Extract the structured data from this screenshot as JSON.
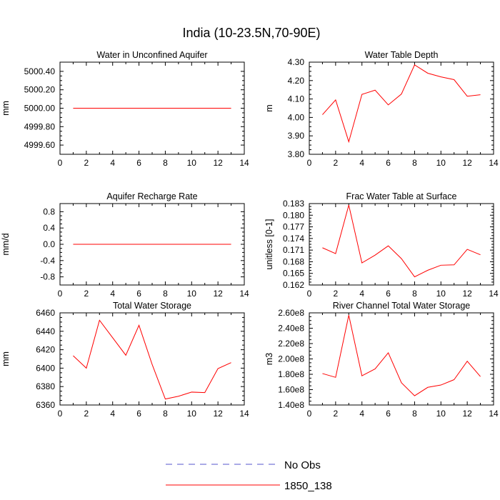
{
  "title": "India (10-23.5N,70-90E)",
  "legend": [
    {
      "label": "No Obs",
      "color": "#5555cc",
      "dash": true
    },
    {
      "label": "1850_138",
      "color": "#ff0000",
      "dash": false
    }
  ],
  "chart_data": [
    {
      "type": "line",
      "title": "Water in Unconfined Aquifer",
      "ylabel": "mm",
      "xlim": [
        0,
        14
      ],
      "xticks": [
        "0",
        "2",
        "4",
        "6",
        "8",
        "10",
        "12",
        "14"
      ],
      "ylim": [
        4999.5,
        5000.5
      ],
      "yticks": [
        {
          "v": 4999.6,
          "label": "4999.60"
        },
        {
          "v": 4999.8,
          "label": "4999.80"
        },
        {
          "v": 5000.0,
          "label": "5000.00"
        },
        {
          "v": 5000.2,
          "label": "5000.20"
        },
        {
          "v": 5000.4,
          "label": "5000.40"
        }
      ],
      "series": [
        {
          "name": "1850_138",
          "color": "#ff0000",
          "x": [
            1,
            2,
            3,
            4,
            5,
            6,
            7,
            8,
            9,
            10,
            11,
            12,
            13
          ],
          "values": [
            5000,
            5000,
            5000,
            5000,
            5000,
            5000,
            5000,
            5000,
            5000,
            5000,
            5000,
            5000,
            5000
          ]
        }
      ]
    },
    {
      "type": "line",
      "title": "Water Table Depth",
      "ylabel": "m",
      "xlim": [
        0,
        14
      ],
      "xticks": [
        "0",
        "2",
        "4",
        "6",
        "8",
        "10",
        "12",
        "14"
      ],
      "ylim": [
        3.8,
        4.3
      ],
      "yticks": [
        {
          "v": 3.8,
          "label": "3.80"
        },
        {
          "v": 3.9,
          "label": "3.90"
        },
        {
          "v": 4.0,
          "label": "4.00"
        },
        {
          "v": 4.1,
          "label": "4.10"
        },
        {
          "v": 4.2,
          "label": "4.20"
        },
        {
          "v": 4.3,
          "label": "4.30"
        }
      ],
      "series": [
        {
          "name": "1850_138",
          "color": "#ff0000",
          "x": [
            1,
            2,
            3,
            4,
            5,
            6,
            7,
            8,
            9,
            10,
            11,
            12,
            13
          ],
          "values": [
            4.015,
            4.095,
            3.868,
            4.125,
            4.148,
            4.068,
            4.127,
            4.285,
            4.24,
            4.22,
            4.205,
            4.115,
            4.123
          ]
        }
      ]
    },
    {
      "type": "line",
      "title": "Aquifer Recharge Rate",
      "ylabel": "mm/d",
      "xlim": [
        0,
        14
      ],
      "xticks": [
        "0",
        "2",
        "4",
        "6",
        "8",
        "10",
        "12",
        "14"
      ],
      "ylim": [
        -1.0,
        1.0
      ],
      "yticks": [
        {
          "v": -0.8,
          "label": "-0.8"
        },
        {
          "v": -0.4,
          "label": "-0.4"
        },
        {
          "v": 0.0,
          "label": "0.0"
        },
        {
          "v": 0.4,
          "label": "0.4"
        },
        {
          "v": 0.8,
          "label": "0.8"
        }
      ],
      "series": [
        {
          "name": "1850_138",
          "color": "#ff0000",
          "x": [
            1,
            2,
            3,
            4,
            5,
            6,
            7,
            8,
            9,
            10,
            11,
            12,
            13
          ],
          "values": [
            0,
            0,
            0,
            0,
            0,
            0,
            0,
            0,
            0,
            0,
            0,
            0,
            0
          ]
        }
      ]
    },
    {
      "type": "line",
      "title": "Frac Water Table at Surface",
      "ylabel": "unitless [0-1]",
      "xlim": [
        0,
        14
      ],
      "xticks": [
        "0",
        "2",
        "4",
        "6",
        "8",
        "10",
        "12",
        "14"
      ],
      "ylim": [
        0.162,
        0.183
      ],
      "yticks": [
        {
          "v": 0.162,
          "label": "0.162"
        },
        {
          "v": 0.165,
          "label": "0.165"
        },
        {
          "v": 0.168,
          "label": "0.168"
        },
        {
          "v": 0.171,
          "label": "0.171"
        },
        {
          "v": 0.174,
          "label": "0.174"
        },
        {
          "v": 0.177,
          "label": "0.177"
        },
        {
          "v": 0.18,
          "label": "0.180"
        },
        {
          "v": 0.183,
          "label": "0.183"
        }
      ],
      "series": [
        {
          "name": "1850_138",
          "color": "#ff0000",
          "x": [
            1,
            2,
            3,
            4,
            5,
            6,
            7,
            8,
            9,
            10,
            11,
            12,
            13
          ],
          "values": [
            0.1716,
            0.1701,
            0.1826,
            0.1677,
            0.1697,
            0.1721,
            0.1688,
            0.1641,
            0.1658,
            0.1671,
            0.1672,
            0.1712,
            0.1698
          ]
        }
      ]
    },
    {
      "type": "line",
      "title": "Total Water Storage",
      "ylabel": "mm",
      "xlim": [
        0,
        14
      ],
      "xticks": [
        "0",
        "2",
        "4",
        "6",
        "8",
        "10",
        "12",
        "14"
      ],
      "ylim": [
        6360,
        6460
      ],
      "yticks": [
        {
          "v": 6360,
          "label": "6360"
        },
        {
          "v": 6380,
          "label": "6380"
        },
        {
          "v": 6400,
          "label": "6400"
        },
        {
          "v": 6420,
          "label": "6420"
        },
        {
          "v": 6440,
          "label": "6440"
        },
        {
          "v": 6460,
          "label": "6460"
        }
      ],
      "series": [
        {
          "name": "1850_138",
          "color": "#ff0000",
          "x": [
            1,
            2,
            3,
            4,
            5,
            6,
            7,
            8,
            9,
            10,
            11,
            12,
            13
          ],
          "values": [
            6413.5,
            6400,
            6452,
            6433,
            6414,
            6446.5,
            6404,
            6366.5,
            6369.5,
            6374,
            6373.5,
            6399.5,
            6406
          ]
        }
      ]
    },
    {
      "type": "line",
      "title": "River Channel Total Water Storage",
      "ylabel": "m3",
      "xlim": [
        0,
        14
      ],
      "xticks": [
        "0",
        "2",
        "4",
        "6",
        "8",
        "10",
        "12",
        "14"
      ],
      "ylim": [
        140000000.0,
        260000000.0
      ],
      "yticks": [
        {
          "v": 140000000.0,
          "label": "1.40e8"
        },
        {
          "v": 160000000.0,
          "label": "1.60e8"
        },
        {
          "v": 180000000.0,
          "label": "1.80e8"
        },
        {
          "v": 200000000.0,
          "label": "2.00e8"
        },
        {
          "v": 220000000.0,
          "label": "2.20e8"
        },
        {
          "v": 240000000.0,
          "label": "2.40e8"
        },
        {
          "v": 260000000.0,
          "label": "2.60e8"
        }
      ],
      "series": [
        {
          "name": "1850_138",
          "color": "#ff0000",
          "x": [
            1,
            2,
            3,
            4,
            5,
            6,
            7,
            8,
            9,
            10,
            11,
            12,
            13
          ],
          "values": [
            181000000.0,
            176000000.0,
            257000000.0,
            178000000.0,
            187000000.0,
            208000000.0,
            169000000.0,
            152000000.0,
            163000000.0,
            166000000.0,
            173000000.0,
            197000000.0,
            177000000.0
          ]
        }
      ]
    }
  ]
}
